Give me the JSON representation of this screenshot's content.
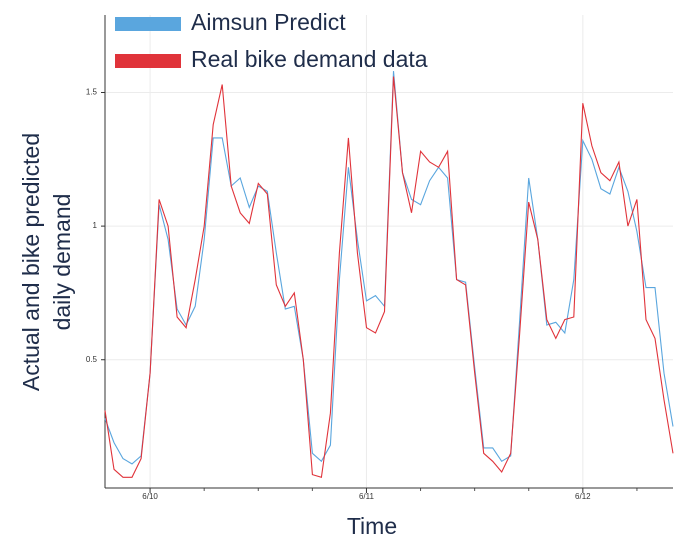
{
  "chart_data": {
    "type": "line",
    "x_label": "Time",
    "y_label": [
      "Actual and bike predicted",
      "daily demand"
    ],
    "categories": [
      null,
      null,
      null,
      null,
      null,
      "6/10",
      null,
      null,
      null,
      null,
      null,
      null,
      null,
      null,
      null,
      null,
      null,
      null,
      null,
      null,
      null,
      null,
      null,
      null,
      null,
      null,
      null,
      null,
      null,
      "6/11",
      null,
      null,
      null,
      null,
      null,
      null,
      null,
      null,
      null,
      null,
      null,
      null,
      null,
      null,
      null,
      null,
      null,
      null,
      null,
      null,
      null,
      null,
      null,
      "6/12",
      null,
      null,
      null,
      null,
      null,
      null,
      null,
      null,
      null,
      null
    ],
    "series": [
      {
        "name": "Aimsun Predict",
        "color": "#5aa6de",
        "values": [
          0.28,
          0.19,
          0.13,
          0.11,
          0.14,
          0.45,
          1.08,
          0.95,
          0.69,
          0.63,
          0.7,
          0.95,
          1.33,
          1.33,
          1.15,
          1.18,
          1.07,
          1.15,
          1.13,
          0.9,
          0.69,
          0.7,
          0.5,
          0.15,
          0.12,
          0.18,
          0.8,
          1.22,
          0.95,
          0.72,
          0.74,
          0.7,
          1.58,
          1.2,
          1.1,
          1.08,
          1.17,
          1.22,
          1.18,
          0.8,
          0.79,
          0.47,
          0.17,
          0.17,
          0.12,
          0.14,
          0.65,
          1.18,
          0.95,
          0.63,
          0.64,
          0.6,
          0.8,
          1.32,
          1.25,
          1.14,
          1.12,
          1.22,
          1.13,
          0.98,
          0.77,
          0.77,
          0.45,
          0.25
        ]
      },
      {
        "name": "Real bike demand data",
        "color": "#e0333a",
        "values": [
          0.31,
          0.09,
          0.06,
          0.06,
          0.13,
          0.45,
          1.1,
          1.0,
          0.66,
          0.62,
          0.8,
          1.0,
          1.38,
          1.53,
          1.15,
          1.05,
          1.01,
          1.16,
          1.12,
          0.78,
          0.7,
          0.75,
          0.5,
          0.07,
          0.06,
          0.3,
          0.9,
          1.33,
          0.9,
          0.62,
          0.6,
          0.68,
          1.56,
          1.2,
          1.05,
          1.28,
          1.24,
          1.22,
          1.28,
          0.8,
          0.78,
          0.45,
          0.15,
          0.12,
          0.08,
          0.15,
          0.6,
          1.09,
          0.95,
          0.65,
          0.58,
          0.65,
          0.66,
          1.46,
          1.3,
          1.2,
          1.17,
          1.24,
          1.0,
          1.1,
          0.65,
          0.58,
          0.35,
          0.15
        ]
      }
    ],
    "ylim": [
      0.02,
      1.79
    ],
    "yticks": [
      0.5,
      1,
      1.5
    ],
    "grid": true
  }
}
